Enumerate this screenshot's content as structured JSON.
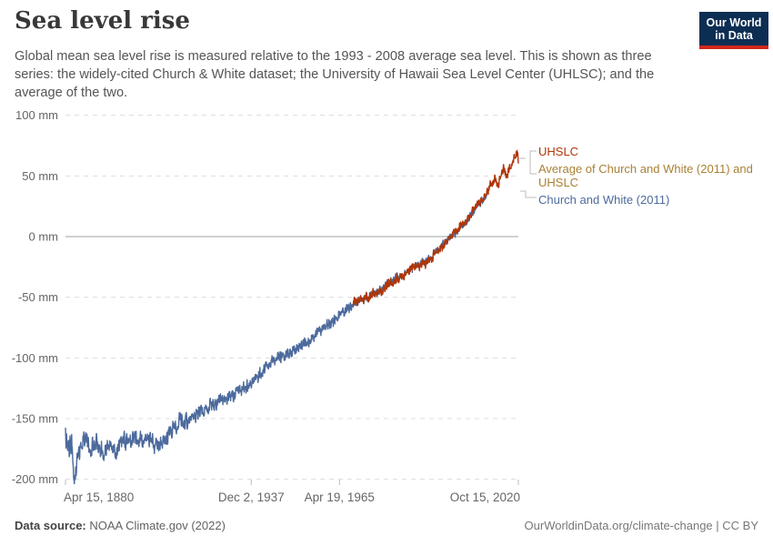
{
  "header": {
    "title": "Sea level rise",
    "subtitle": "Global mean sea level rise is measured relative to the 1993 - 2008 average sea level. This is shown as three series: the widely-cited Church & White dataset; the University of Hawaii Sea Level Center (UHLSC); and the average of the two.",
    "logo": {
      "line1": "Our World",
      "line2": "in Data",
      "bg": "#0D2E53",
      "stripe": "#D2271B",
      "text_color": "#ffffff"
    }
  },
  "legend": {
    "items": [
      {
        "label": "UHSLC",
        "color": "#B13507"
      },
      {
        "label": "Average of Church and White (2011) and UHSLC",
        "color": "#A98135"
      },
      {
        "label": "Church and White (2011)",
        "color": "#4C6A9C"
      }
    ]
  },
  "chart_data": {
    "type": "line",
    "title": "Sea level rise",
    "xlabel": "",
    "ylabel": "mm",
    "grid": "horizontal-dashed",
    "legend_position": "right",
    "x_range": [
      1880.29,
      2020.8
    ],
    "y_range": [
      -200,
      100
    ],
    "y_ticks": [
      {
        "label": "100 mm",
        "value": 100
      },
      {
        "label": "50 mm",
        "value": 50
      },
      {
        "label": "0 mm",
        "value": 0
      },
      {
        "label": "-50 mm",
        "value": -50
      },
      {
        "label": "-100 mm",
        "value": -100
      },
      {
        "label": "-150 mm",
        "value": -150
      },
      {
        "label": "-200 mm",
        "value": -200
      }
    ],
    "x_ticks": [
      {
        "label": "Apr 15, 1880",
        "year": 1880.29,
        "align": "start"
      },
      {
        "label": "Dec 2, 1937",
        "year": 1937.92,
        "align": "middle"
      },
      {
        "label": "Apr 19, 1965",
        "year": 1965.3,
        "align": "middle"
      },
      {
        "label": "Oct 15, 2020",
        "year": 2020.79,
        "align": "end"
      }
    ],
    "series": [
      {
        "name": "Church and White (2011)",
        "color": "#4C6A9C",
        "start": 1880.29,
        "end": 2011.3,
        "anchors": [
          [
            1880.3,
            -163
          ],
          [
            1881.2,
            -176
          ],
          [
            1882.2,
            -170
          ],
          [
            1883,
            -199
          ],
          [
            1884,
            -183
          ],
          [
            1886,
            -163
          ],
          [
            1888,
            -174
          ],
          [
            1890,
            -170
          ],
          [
            1892,
            -177
          ],
          [
            1894,
            -172
          ],
          [
            1896,
            -176
          ],
          [
            1898,
            -168
          ],
          [
            1900,
            -170
          ],
          [
            1902,
            -166
          ],
          [
            1904,
            -169
          ],
          [
            1906,
            -165
          ],
          [
            1908,
            -172
          ],
          [
            1910,
            -170
          ],
          [
            1912,
            -165
          ],
          [
            1914,
            -157
          ],
          [
            1916,
            -151
          ],
          [
            1918,
            -152
          ],
          [
            1920,
            -146
          ],
          [
            1922,
            -146
          ],
          [
            1924,
            -141
          ],
          [
            1926,
            -139
          ],
          [
            1928,
            -136
          ],
          [
            1930,
            -133
          ],
          [
            1932,
            -131
          ],
          [
            1934,
            -128
          ],
          [
            1936,
            -124
          ],
          [
            1938,
            -121
          ],
          [
            1940,
            -115
          ],
          [
            1942,
            -109
          ],
          [
            1944,
            -104
          ],
          [
            1946,
            -100
          ],
          [
            1948,
            -98
          ],
          [
            1950,
            -95
          ],
          [
            1952,
            -92
          ],
          [
            1954,
            -88
          ],
          [
            1956,
            -86
          ],
          [
            1958,
            -80
          ],
          [
            1960,
            -76
          ],
          [
            1962,
            -72
          ],
          [
            1964,
            -69
          ],
          [
            1966,
            -64
          ],
          [
            1968,
            -60
          ],
          [
            1970,
            -55
          ],
          [
            1972,
            -52
          ],
          [
            1974,
            -50
          ],
          [
            1976,
            -47
          ],
          [
            1978,
            -44
          ],
          [
            1980,
            -40
          ],
          [
            1982,
            -36
          ],
          [
            1984,
            -33
          ],
          [
            1986,
            -30
          ],
          [
            1988,
            -26
          ],
          [
            1990,
            -23
          ],
          [
            1992,
            -20
          ],
          [
            1994,
            -16
          ],
          [
            1996,
            -10
          ],
          [
            1998,
            -5
          ],
          [
            2000,
            0
          ],
          [
            2002,
            5
          ],
          [
            2004,
            10
          ],
          [
            2006,
            17
          ],
          [
            2008,
            25
          ],
          [
            2010,
            31
          ],
          [
            2011.3,
            34
          ]
        ]
      },
      {
        "name": "UHSLC",
        "color": "#B13507",
        "start": 1969.5,
        "end": 2020.8,
        "anchors": [
          [
            1969.5,
            -55
          ],
          [
            1972,
            -52
          ],
          [
            1974,
            -51
          ],
          [
            1976,
            -47
          ],
          [
            1978,
            -45
          ],
          [
            1980,
            -41
          ],
          [
            1982,
            -37
          ],
          [
            1984,
            -34
          ],
          [
            1986,
            -31
          ],
          [
            1988,
            -25
          ],
          [
            1990,
            -24
          ],
          [
            1992,
            -22
          ],
          [
            1994,
            -17
          ],
          [
            1996,
            -11
          ],
          [
            1998,
            -6
          ],
          [
            2000,
            1
          ],
          [
            2002,
            6
          ],
          [
            2004,
            11
          ],
          [
            2006,
            18
          ],
          [
            2008,
            26
          ],
          [
            2010,
            32
          ],
          [
            2011.5,
            38
          ],
          [
            2012.5,
            44
          ],
          [
            2013.5,
            48
          ],
          [
            2014.5,
            42
          ],
          [
            2015.5,
            52
          ],
          [
            2016.3,
            56
          ],
          [
            2017.2,
            50
          ],
          [
            2018,
            56
          ],
          [
            2019,
            62
          ],
          [
            2019.8,
            67
          ],
          [
            2020.4,
            69
          ],
          [
            2020.8,
            62
          ]
        ]
      },
      {
        "name": "Average of Church and White (2011) and UHSLC",
        "color": "#A98135",
        "start": 1969.5,
        "end": 2011.3,
        "anchors": [
          [
            1969.5,
            -55
          ],
          [
            1975,
            -49
          ],
          [
            1980,
            -40
          ],
          [
            1985,
            -32
          ],
          [
            1990,
            -23
          ],
          [
            1995,
            -13
          ],
          [
            2000,
            0
          ],
          [
            2005,
            13
          ],
          [
            2008,
            25
          ],
          [
            2010,
            31
          ],
          [
            2011.3,
            36
          ]
        ]
      }
    ]
  },
  "footer": {
    "source_label": "Data source:",
    "source_text": " NOAA Climate.gov (2022)",
    "credit": "OurWorldinData.org/climate-change | CC BY"
  }
}
